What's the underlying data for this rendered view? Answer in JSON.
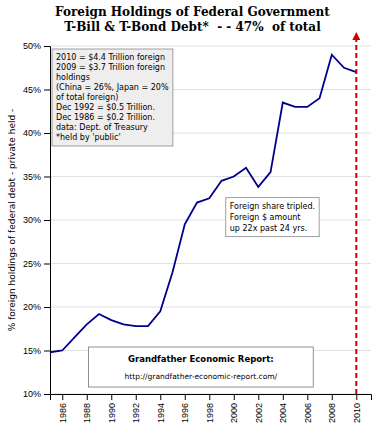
{
  "chart_data": {
    "type": "line",
    "title": "Foreign Holdings of Federal Government",
    "subtitle": "T-Bill & T-Bond Debt*  - - 47%  of total",
    "ylabel": "% foreign holdings of federal debt - private held -",
    "x": [
      1985,
      1986,
      1987,
      1988,
      1989,
      1990,
      1991,
      1992,
      1993,
      1994,
      1995,
      1996,
      1997,
      1998,
      1999,
      2000,
      2001,
      2002,
      2003,
      2004,
      2005,
      2006,
      2007,
      2008,
      2009,
      2010
    ],
    "values": [
      14.8,
      15.0,
      16.5,
      18.0,
      19.2,
      18.5,
      18.0,
      17.8,
      17.8,
      19.5,
      24.0,
      29.5,
      32.0,
      32.5,
      34.5,
      35.0,
      36.0,
      33.8,
      35.5,
      43.5,
      43.0,
      43.0,
      44.0,
      49.0,
      47.5,
      47.0
    ],
    "color": "#00008B",
    "xlim": [
      1985,
      2011.2
    ],
    "xticks": [
      1986,
      1988,
      1990,
      1992,
      1994,
      1996,
      1998,
      2000,
      2002,
      2004,
      2006,
      2008,
      2010
    ],
    "ylim": [
      10,
      50
    ],
    "yticks": [
      {
        "value": 10,
        "label": "10%"
      },
      {
        "value": 15,
        "label": "15%"
      },
      {
        "value": 20,
        "label": "20%"
      },
      {
        "value": 25,
        "label": "25%"
      },
      {
        "value": 30,
        "label": "30%"
      },
      {
        "value": 35,
        "label": "35%"
      },
      {
        "value": 40,
        "label": "40%"
      },
      {
        "value": 45,
        "label": "45%"
      },
      {
        "value": 50,
        "label": "50%"
      }
    ],
    "grid": true,
    "vlines": [
      {
        "x": 2010,
        "color": "#CC0000"
      }
    ],
    "annotations": [
      {
        "lines": [
          "2010 = $4.4 Trillion foreign",
          "2009 = $3.7 Trillion foreign",
          "holdings",
          "(China = 26%, Japan = 20%",
          "of total foreign)",
          "Dec 1992 = $0.5 Trillion.",
          "Dec 1986 = $0.2 Trillion.",
          "data: Dept. of Treasury",
          "*held by 'public'"
        ]
      },
      {
        "lines": [
          "Foreign share tripled.",
          "Foreign $ amount",
          "up 22x past 24 yrs."
        ]
      },
      {
        "lines": [
          "Grandfather Economic Report:",
          "http://grandfather-economic-report.com/"
        ]
      }
    ]
  }
}
